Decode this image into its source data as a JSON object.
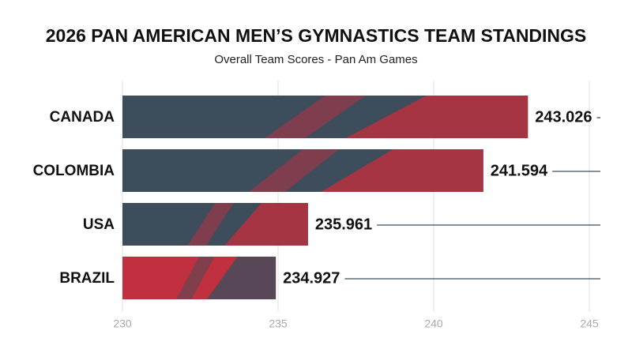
{
  "chart_data": {
    "type": "bar",
    "orientation": "horizontal",
    "title": "2026 PAN AMERICAN MEN’S GYMNASTICS TEAM STANDINGS",
    "subtitle": "Overall Team Scores - Pan Am Games",
    "categories": [
      "CANADA",
      "COLOMBIA",
      "USA",
      "BRAZIL"
    ],
    "values": [
      243.026,
      241.594,
      235.961,
      234.927
    ],
    "colors": [
      "#3d4d5c",
      "#3d4d5c",
      "#3d4d5c",
      "#c0303f"
    ],
    "accent_color": "#c0303f",
    "xlim": [
      230,
      245
    ],
    "xticks": [
      230,
      235,
      240,
      245
    ],
    "grid": true
  }
}
